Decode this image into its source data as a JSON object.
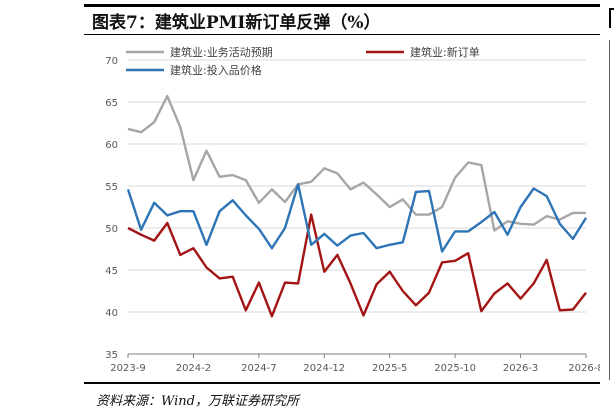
{
  "title": "图表7：建筑业PMI新订单反弹（%）",
  "source": "资料来源：Wind，万联证券研究所",
  "colors": {
    "business": "#a6a6a6",
    "new_orders": "#a31515",
    "input_price": "#2e75b6"
  },
  "chart_data": {
    "type": "line",
    "ylim": [
      35,
      70
    ],
    "yticks": [
      "35",
      "40",
      "45",
      "50",
      "55",
      "60",
      "65",
      "70"
    ],
    "categories": [
      "2023-9",
      "2023-10",
      "2023-11",
      "2023-12",
      "2024-1",
      "2024-2",
      "2024-3",
      "2024-4",
      "2024-5",
      "2024-6",
      "2024-7",
      "2024-8",
      "2024-9",
      "2024-10",
      "2024-11",
      "2024-12",
      "2025-1",
      "2025-2",
      "2025-3",
      "2025-4",
      "2025-5",
      "2025-6",
      "2025-7",
      "2025-8",
      "2025-9",
      "2025-10",
      "2025-11",
      "2025-12",
      "2026-1",
      "2026-2",
      "2026-3",
      "2026-4",
      "2026-5",
      "2026-6",
      "2026-7",
      "2026-8"
    ],
    "xtick_labels": [
      "2023-9",
      "2024-2",
      "2024-7",
      "2024-12",
      "2025-5",
      "2025-10",
      "2026-3",
      "2026-8"
    ],
    "legend_placement": "top",
    "series": [
      {
        "name": "建筑业:业务活动预期",
        "values": [
          61.8,
          61.4,
          62.6,
          65.7,
          62.0,
          55.7,
          59.2,
          56.1,
          56.3,
          55.7,
          53.0,
          54.6,
          53.1,
          55.2,
          55.5,
          57.1,
          56.5,
          54.6,
          55.4,
          54.0,
          52.5,
          53.4,
          51.6,
          51.6,
          52.5,
          56.0,
          57.8,
          57.5,
          49.7,
          50.8,
          50.5,
          50.4,
          51.4,
          51.0,
          51.8,
          51.8
        ]
      },
      {
        "name": "建筑业:新订单",
        "values": [
          50.0,
          49.2,
          48.5,
          50.6,
          46.8,
          47.6,
          45.3,
          44.0,
          44.2,
          40.2,
          43.5,
          39.5,
          43.5,
          43.4,
          51.6,
          44.8,
          46.8,
          43.4,
          39.6,
          43.3,
          44.8,
          42.5,
          40.8,
          42.3,
          45.9,
          46.1,
          47.0,
          40.1,
          42.2,
          43.4,
          41.6,
          43.4,
          46.2,
          40.2,
          40.3,
          42.3
        ]
      },
      {
        "name": "建筑业:投入品价格",
        "values": [
          54.6,
          49.8,
          53.0,
          51.5,
          52.0,
          52.0,
          48.0,
          52.0,
          53.3,
          51.5,
          49.9,
          47.6,
          50.0,
          55.2,
          48.0,
          49.3,
          47.9,
          49.1,
          49.4,
          47.6,
          48.0,
          48.3,
          54.3,
          54.4,
          47.2,
          49.6,
          49.6,
          50.7,
          51.9,
          49.2,
          52.5,
          54.7,
          53.8,
          50.5,
          48.7,
          51.2
        ]
      }
    ]
  }
}
